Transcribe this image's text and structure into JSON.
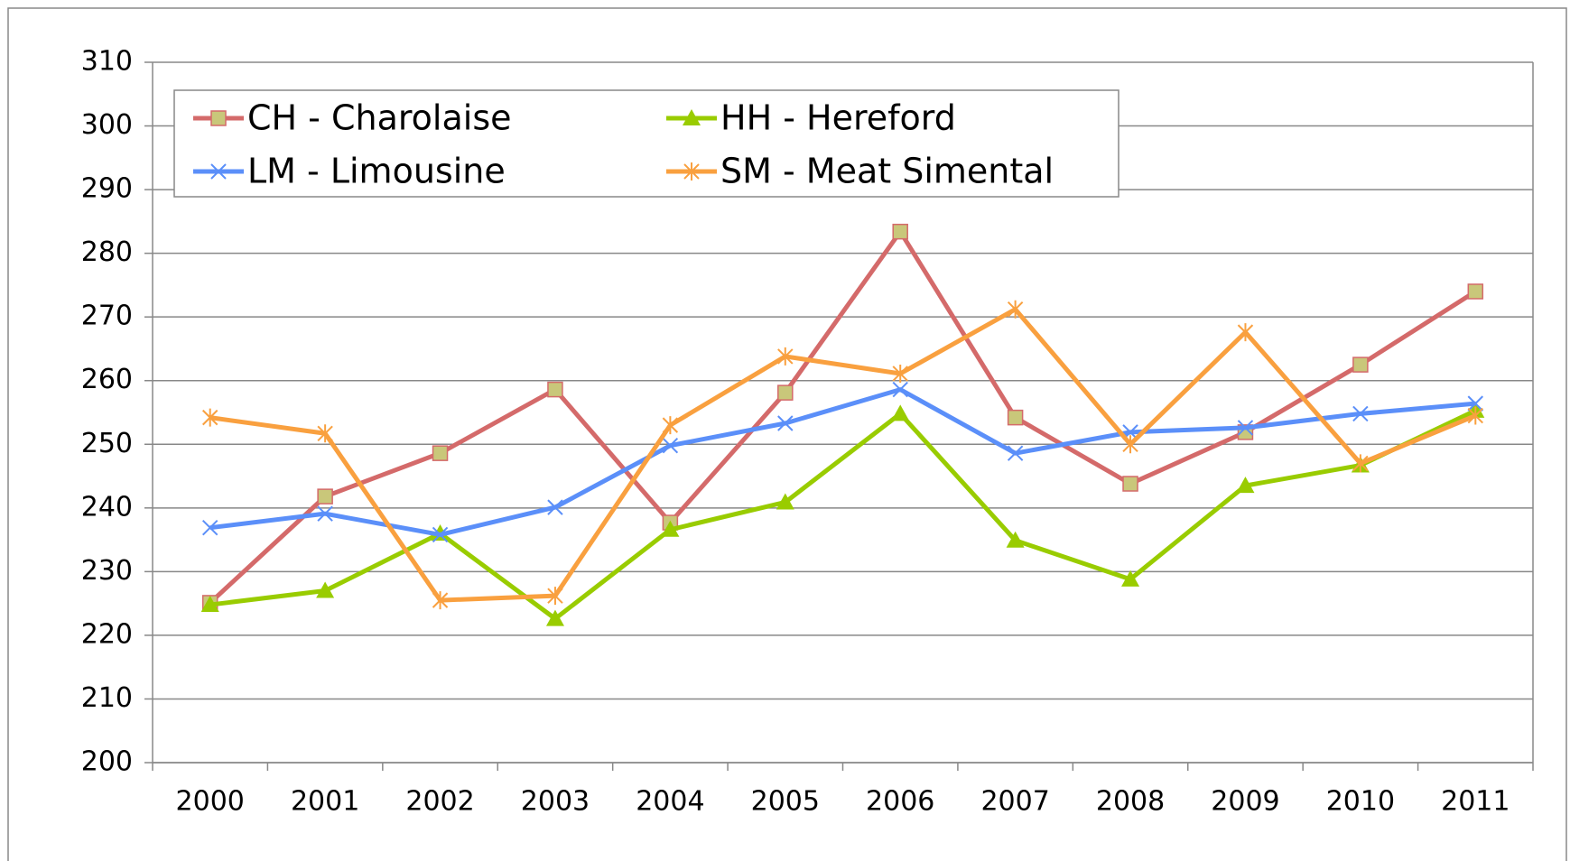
{
  "chart_data": {
    "type": "line",
    "categories": [
      "2000",
      "2001",
      "2002",
      "2003",
      "2004",
      "2005",
      "2006",
      "2007",
      "2008",
      "2009",
      "2010",
      "2011"
    ],
    "series": [
      {
        "name": "CH - Charolaise",
        "color": "#d46a6a",
        "marker": "square",
        "values": [
          225.1,
          241.8,
          248.6,
          258.6,
          237.7,
          258.1,
          283.4,
          254.2,
          243.8,
          251.9,
          262.5,
          274.0
        ]
      },
      {
        "name": "HH - Hereford",
        "color": "#99cc00",
        "marker": "triangle",
        "values": [
          224.8,
          227.0,
          236.0,
          222.6,
          236.6,
          240.9,
          254.8,
          234.9,
          228.8,
          243.5,
          246.7,
          255.3
        ]
      },
      {
        "name": "LM - Limousine",
        "color": "#5b8ff9",
        "marker": "x",
        "values": [
          236.9,
          239.1,
          235.8,
          240.1,
          249.8,
          253.3,
          258.6,
          248.6,
          251.9,
          252.6,
          254.8,
          256.4
        ]
      },
      {
        "name": "SM - Meat Simental",
        "color": "#f9a03f",
        "marker": "star",
        "values": [
          254.2,
          251.7,
          225.5,
          226.2,
          253.0,
          263.8,
          261.1,
          271.2,
          250.0,
          267.6,
          247.0,
          254.5
        ]
      }
    ],
    "ylim": [
      200,
      310
    ],
    "yticks": [
      200,
      210,
      220,
      230,
      240,
      250,
      260,
      270,
      280,
      290,
      300,
      310
    ],
    "grid": true,
    "legend": "upper left"
  }
}
